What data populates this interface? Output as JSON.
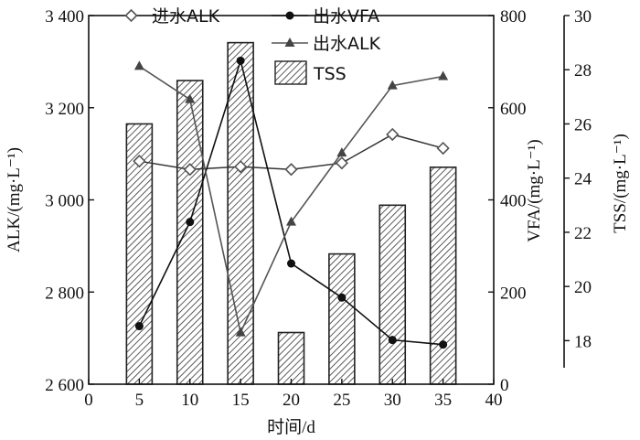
{
  "chart_data": {
    "type": "bar+line",
    "x": {
      "label": "时间/d",
      "range": [
        0,
        40
      ],
      "ticks": [
        0,
        5,
        10,
        15,
        20,
        25,
        30,
        35,
        40
      ],
      "tick_labels": [
        "0",
        "5",
        "10",
        "15",
        "20",
        "25",
        "30",
        "35",
        "40"
      ]
    },
    "y_left": {
      "label": "ALK/(mg·L⁻¹)",
      "range": [
        2600,
        3400
      ],
      "ticks": [
        2600,
        2800,
        3000,
        3200,
        3400
      ],
      "tick_labels": [
        "2 600",
        "2 800",
        "3 000",
        "3 200",
        "3 400"
      ]
    },
    "y_right1": {
      "label": "VFA/(mg·L⁻¹)",
      "range": [
        0,
        800
      ],
      "ticks": [
        0,
        200,
        400,
        600,
        800
      ],
      "tick_labels": [
        "0",
        "200",
        "400",
        "600",
        "800"
      ]
    },
    "y_right2": {
      "label": "TSS/(mg·L⁻¹)",
      "range": [
        17,
        30
      ],
      "ticks": [
        18,
        20,
        22,
        24,
        26,
        28,
        30
      ],
      "tick_labels": [
        "18",
        "20",
        "22",
        "24",
        "26",
        "28",
        "30"
      ]
    },
    "series": [
      {
        "name": "进水ALK",
        "axis": "y_left",
        "type": "line",
        "marker": "diamond-open",
        "x": [
          5,
          10,
          15,
          20,
          25,
          30,
          35
        ],
        "y": [
          3084,
          3066,
          3072,
          3066,
          3080,
          3142,
          3112
        ]
      },
      {
        "name": "出水VFA",
        "axis": "y_right1",
        "type": "line",
        "marker": "circle-filled",
        "x": [
          5,
          10,
          15,
          20,
          25,
          30,
          35
        ],
        "y": [
          126,
          352,
          702,
          262,
          188,
          96,
          86
        ]
      },
      {
        "name": "出水ALK",
        "axis": "y_left",
        "type": "line",
        "marker": "triangle-filled",
        "x": [
          5,
          10,
          15,
          20,
          25,
          30,
          35
        ],
        "y": [
          3290,
          3218,
          2712,
          2952,
          3102,
          3248,
          3268
        ]
      },
      {
        "name": "TSS",
        "axis": "y_right2",
        "type": "bar",
        "pattern": "hatch",
        "x": [
          5,
          10,
          15,
          20,
          25,
          30,
          35
        ],
        "y": [
          26.0,
          27.6,
          29.0,
          18.3,
          21.2,
          23.0,
          24.4
        ]
      }
    ],
    "legend": {
      "placement": "top-left, inside plot"
    },
    "grid": false
  }
}
